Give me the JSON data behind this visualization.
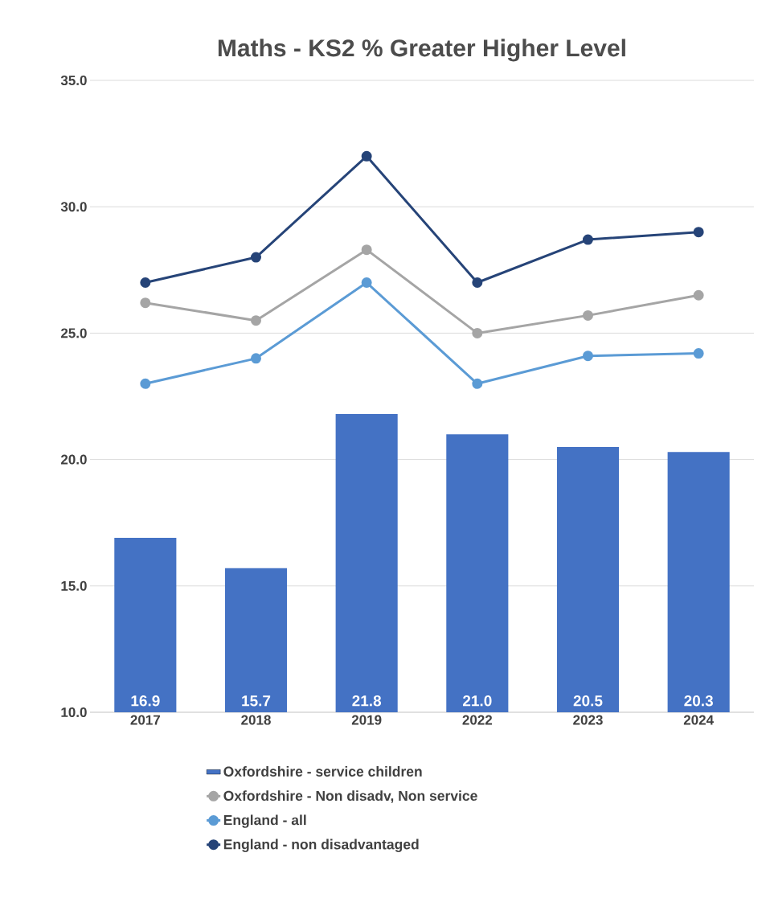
{
  "chart_data": {
    "type": "bar",
    "title": "Maths - KS2 % Greater Higher Level",
    "categories": [
      "2017",
      "2018",
      "2019",
      "2022",
      "2023",
      "2024"
    ],
    "series": [
      {
        "name": "Oxfordshire - service children",
        "color": "#4472c4",
        "values": [
          16.9,
          15.7,
          21.8,
          21.0,
          20.5,
          20.3
        ],
        "value_labels": [
          "16.9",
          "15.7",
          "21.8",
          "21.0",
          "20.5",
          "20.3"
        ]
      },
      {
        "name": "Oxfordshire - Non disadv, Non service",
        "type": "line",
        "color": "#a5a5a5",
        "values": [
          26.2,
          25.5,
          28.3,
          25.0,
          25.7,
          26.5
        ]
      },
      {
        "name": "England - all",
        "type": "line",
        "color": "#5b9bd5",
        "values": [
          23.0,
          24.0,
          27.0,
          23.0,
          24.1,
          24.2
        ]
      },
      {
        "name": "England - non disadvantaged",
        "type": "line",
        "color": "#264478",
        "values": [
          27.0,
          28.0,
          32.0,
          27.0,
          28.7,
          29.0
        ]
      }
    ],
    "ylim": [
      10,
      35
    ],
    "yticks": [
      {
        "value": 10,
        "label": "10.0"
      },
      {
        "value": 15,
        "label": "15.0"
      },
      {
        "value": 20,
        "label": "20.0"
      },
      {
        "value": 25,
        "label": "25.0"
      },
      {
        "value": 30,
        "label": "30.0"
      },
      {
        "value": 35,
        "label": "35.0"
      }
    ],
    "grid": "y",
    "legend": "bottom",
    "marker": "circle"
  }
}
